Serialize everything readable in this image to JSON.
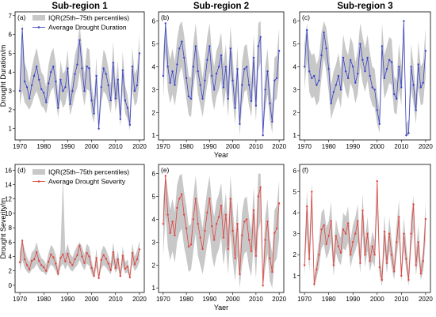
{
  "chart_data": [
    {
      "panel": "(a)",
      "title": "Sub-region 1",
      "type": "line",
      "color": "#3a43c8",
      "xlim": [
        1968,
        2022
      ],
      "ylim": [
        0.4,
        7.2
      ],
      "yticks": [
        1,
        2,
        3,
        4,
        5,
        6,
        7
      ],
      "xticks": [
        1970,
        1980,
        1990,
        2000,
        2010,
        2020
      ],
      "ylabel": "Drought Duration/m",
      "xlabel": "",
      "legend": [
        "IQR(25th–75th percentiles)",
        "Average Drought Duration"
      ],
      "x": [
        1970,
        1971,
        1972,
        1973,
        1974,
        1975,
        1976,
        1977,
        1978,
        1979,
        1980,
        1981,
        1982,
        1983,
        1984,
        1985,
        1986,
        1987,
        1988,
        1989,
        1990,
        1991,
        1992,
        1993,
        1994,
        1995,
        1996,
        1997,
        1998,
        1999,
        2000,
        2001,
        2002,
        2003,
        2004,
        2005,
        2006,
        2007,
        2008,
        2009,
        2010,
        2011,
        2012,
        2013,
        2014,
        2015,
        2016,
        2017,
        2018,
        2019,
        2020
      ],
      "values": [
        3.0,
        6.3,
        3.5,
        3.2,
        2.6,
        3.3,
        3.8,
        4.3,
        3.6,
        3.1,
        2.9,
        2.4,
        3.4,
        4.0,
        4.3,
        3.5,
        2.1,
        3.6,
        3.0,
        3.2,
        4.2,
        2.3,
        3.0,
        3.9,
        4.4,
        5.7,
        4.2,
        3.0,
        4.3,
        4.2,
        2.5,
        1.8,
        3.8,
        1.0,
        3.2,
        4.2,
        3.9,
        3.3,
        2.5,
        4.5,
        2.6,
        3.6,
        1.5,
        4.1,
        2.5,
        2.1,
        1.2,
        4.3,
        3.0,
        3.3,
        5.0
      ],
      "iqr_low": [
        2.2,
        3.0,
        2.4,
        2.2,
        2.0,
        2.3,
        2.7,
        3.0,
        2.6,
        2.2,
        2.1,
        1.8,
        2.5,
        3.0,
        3.2,
        2.5,
        1.6,
        2.6,
        2.1,
        2.3,
        3.0,
        1.7,
        2.2,
        2.8,
        3.2,
        4.0,
        3.0,
        2.2,
        3.1,
        3.0,
        1.8,
        1.3,
        2.8,
        0.8,
        2.3,
        3.0,
        2.8,
        2.4,
        1.8,
        3.2,
        1.9,
        2.6,
        1.1,
        3.0,
        1.8,
        1.5,
        0.9,
        3.1,
        2.2,
        2.4,
        3.6
      ],
      "iqr_high": [
        3.8,
        6.6,
        4.5,
        4.1,
        3.4,
        4.2,
        4.8,
        5.3,
        4.6,
        4.0,
        3.8,
        3.2,
        4.4,
        5.0,
        5.3,
        4.5,
        2.8,
        4.6,
        3.9,
        4.1,
        5.2,
        3.0,
        3.9,
        4.9,
        5.4,
        6.5,
        5.2,
        3.9,
        5.3,
        5.2,
        3.3,
        2.5,
        4.8,
        1.4,
        4.1,
        5.2,
        4.9,
        4.2,
        3.3,
        5.6,
        3.4,
        4.6,
        2.1,
        5.1,
        3.3,
        2.8,
        1.7,
        5.3,
        3.9,
        4.2,
        6.0
      ]
    },
    {
      "panel": "(b)",
      "title": "Sub-region 2",
      "type": "line",
      "color": "#3a43c8",
      "xlim": [
        1968,
        2022
      ],
      "ylim": [
        0.8,
        6.4
      ],
      "yticks": [
        1,
        2,
        3,
        4,
        5,
        6
      ],
      "xticks": [
        1970,
        1980,
        1990,
        2000,
        2010,
        2020
      ],
      "ylabel": "",
      "xlabel": "Year",
      "legend": [],
      "x": [
        1970,
        1971,
        1972,
        1973,
        1974,
        1975,
        1976,
        1977,
        1978,
        1979,
        1980,
        1981,
        1982,
        1983,
        1984,
        1985,
        1986,
        1987,
        1988,
        1989,
        1990,
        1991,
        1992,
        1993,
        1994,
        1995,
        1996,
        1997,
        1998,
        1999,
        2000,
        2001,
        2002,
        2003,
        2004,
        2005,
        2006,
        2007,
        2008,
        2009,
        2010,
        2011,
        2012,
        2013,
        2014,
        2015,
        2016,
        2017,
        2018,
        2019,
        2020
      ],
      "values": [
        3.6,
        5.9,
        4.0,
        3.3,
        3.8,
        3.2,
        4.1,
        4.8,
        5.1,
        4.4,
        3.5,
        2.7,
        2.6,
        4.0,
        4.9,
        3.8,
        3.2,
        2.6,
        3.4,
        4.3,
        4.9,
        3.6,
        3.0,
        3.7,
        4.0,
        4.5,
        3.1,
        4.0,
        2.6,
        4.8,
        3.4,
        2.2,
        3.9,
        1.5,
        3.2,
        3.9,
        4.0,
        3.2,
        2.5,
        4.4,
        2.3,
        4.9,
        5.3,
        1.0,
        3.0,
        3.8,
        2.4,
        1.6,
        3.4,
        3.5,
        4.7
      ],
      "iqr_low": [
        2.6,
        4.6,
        3.0,
        2.4,
        2.8,
        2.3,
        3.0,
        3.7,
        4.0,
        3.3,
        2.6,
        1.9,
        1.8,
        3.0,
        3.8,
        2.8,
        2.3,
        1.8,
        2.5,
        3.2,
        3.8,
        2.6,
        2.1,
        2.7,
        3.0,
        3.4,
        2.2,
        3.0,
        1.8,
        3.7,
        2.5,
        1.5,
        2.9,
        1.0,
        2.3,
        2.9,
        3.0,
        2.3,
        1.8,
        3.3,
        1.6,
        3.8,
        4.2,
        1.0,
        2.1,
        2.8,
        1.7,
        1.1,
        2.5,
        2.6,
        3.6
      ],
      "iqr_high": [
        4.6,
        6.0,
        5.0,
        4.3,
        4.8,
        4.2,
        5.2,
        5.8,
        6.0,
        5.4,
        4.5,
        3.6,
        3.5,
        5.0,
        5.9,
        4.8,
        4.2,
        3.5,
        4.4,
        5.3,
        5.9,
        4.6,
        4.0,
        4.7,
        5.0,
        5.5,
        4.1,
        5.0,
        3.5,
        5.8,
        4.4,
        3.0,
        4.9,
        2.2,
        4.2,
        4.9,
        5.0,
        4.2,
        3.3,
        5.4,
        3.1,
        5.9,
        6.0,
        1.6,
        4.0,
        4.8,
        3.2,
        2.3,
        4.4,
        4.5,
        5.7
      ]
    },
    {
      "panel": "(c)",
      "title": "Sub-region 3",
      "type": "line",
      "color": "#3a43c8",
      "xlim": [
        1968,
        2022
      ],
      "ylim": [
        0.8,
        6.4
      ],
      "yticks": [
        1,
        2,
        3,
        4,
        5,
        6
      ],
      "xticks": [
        1970,
        1980,
        1990,
        2000,
        2010,
        2020
      ],
      "ylabel": "",
      "xlabel": "",
      "legend": [],
      "x": [
        1970,
        1971,
        1972,
        1973,
        1974,
        1975,
        1976,
        1977,
        1978,
        1979,
        1980,
        1981,
        1982,
        1983,
        1984,
        1985,
        1986,
        1987,
        1988,
        1989,
        1990,
        1991,
        1992,
        1993,
        1994,
        1995,
        1996,
        1997,
        1998,
        1999,
        2000,
        2001,
        2002,
        2003,
        2004,
        2005,
        2006,
        2007,
        2008,
        2009,
        2010,
        2011,
        2012,
        2013,
        2014,
        2015,
        2016,
        2017,
        2018,
        2019,
        2020
      ],
      "values": [
        4.0,
        5.6,
        3.8,
        3.5,
        3.6,
        3.2,
        3.4,
        4.5,
        5.5,
        4.8,
        3.9,
        2.4,
        2.9,
        3.2,
        3.6,
        3.0,
        4.4,
        3.8,
        3.5,
        4.3,
        4.0,
        3.3,
        3.7,
        5.0,
        4.3,
        3.8,
        4.4,
        3.6,
        3.1,
        3.0,
        2.1,
        1.5,
        4.9,
        3.5,
        3.9,
        4.3,
        4.2,
        2.8,
        2.6,
        4.0,
        3.1,
        6.0,
        1.0,
        1.1,
        4.0,
        3.2,
        2.1,
        4.1,
        3.1,
        3.3,
        4.7
      ],
      "iqr_low": [
        3.0,
        4.3,
        2.9,
        2.6,
        2.7,
        2.3,
        2.5,
        3.5,
        4.4,
        3.8,
        2.9,
        1.7,
        2.1,
        2.4,
        2.7,
        2.2,
        3.4,
        2.9,
        2.6,
        3.3,
        3.0,
        2.4,
        2.8,
        4.0,
        3.3,
        2.9,
        3.4,
        2.7,
        2.3,
        2.2,
        1.5,
        1.1,
        3.8,
        2.6,
        2.9,
        3.3,
        3.2,
        2.0,
        1.9,
        3.0,
        2.3,
        4.8,
        1.0,
        1.0,
        3.0,
        2.4,
        1.5,
        3.1,
        2.3,
        2.4,
        3.6
      ],
      "iqr_high": [
        5.0,
        5.9,
        4.8,
        4.5,
        4.6,
        4.1,
        4.4,
        5.5,
        6.0,
        5.7,
        4.9,
        3.2,
        3.8,
        4.1,
        4.6,
        3.9,
        5.4,
        4.8,
        4.5,
        5.3,
        5.0,
        4.2,
        4.7,
        5.9,
        5.3,
        4.8,
        5.4,
        4.6,
        4.0,
        3.9,
        2.8,
        2.1,
        5.9,
        4.5,
        4.9,
        5.3,
        5.2,
        3.6,
        3.4,
        5.0,
        4.0,
        6.0,
        1.5,
        1.7,
        5.0,
        4.1,
        2.8,
        5.1,
        4.0,
        4.2,
        5.7
      ]
    },
    {
      "panel": "(d)",
      "title": "",
      "type": "line",
      "color": "#e0443f",
      "xlim": [
        1968,
        2022
      ],
      "ylim": [
        -1,
        16.8
      ],
      "yticks": [
        0,
        2,
        4,
        6,
        8,
        10,
        12,
        14,
        16
      ],
      "xticks": [
        1970,
        1980,
        1990,
        2000,
        2010,
        2020
      ],
      "ylabel": "Drought Severity/m",
      "xlabel": "",
      "legend": [
        "IQR(25th–75th percentiles)",
        "Average Drought Severity"
      ],
      "x": [
        1970,
        1971,
        1972,
        1973,
        1974,
        1975,
        1976,
        1977,
        1978,
        1979,
        1980,
        1981,
        1982,
        1983,
        1984,
        1985,
        1986,
        1987,
        1988,
        1989,
        1990,
        1991,
        1992,
        1993,
        1994,
        1995,
        1996,
        1997,
        1998,
        1999,
        2000,
        2001,
        2002,
        2003,
        2004,
        2005,
        2006,
        2007,
        2008,
        2009,
        2010,
        2011,
        2012,
        2013,
        2014,
        2015,
        2016,
        2017,
        2018,
        2019,
        2020
      ],
      "values": [
        3.2,
        6.2,
        3.6,
        2.8,
        2.2,
        3.4,
        3.6,
        4.6,
        3.4,
        2.8,
        2.5,
        2.0,
        3.3,
        4.3,
        3.9,
        3.0,
        1.6,
        3.8,
        4.3,
        3.3,
        4.4,
        3.2,
        2.8,
        3.6,
        4.2,
        5.5,
        4.0,
        3.1,
        4.5,
        4.0,
        2.4,
        1.3,
        3.8,
        1.0,
        3.5,
        4.2,
        3.7,
        3.0,
        2.1,
        4.6,
        2.4,
        3.6,
        1.3,
        4.1,
        2.3,
        2.6,
        1.1,
        4.5,
        2.9,
        3.6,
        5.0
      ],
      "iqr_low": [
        2.0,
        3.5,
        2.4,
        1.9,
        1.6,
        2.2,
        2.4,
        3.0,
        2.3,
        1.9,
        1.8,
        1.4,
        2.2,
        2.9,
        2.6,
        2.0,
        1.2,
        2.5,
        3.0,
        2.2,
        2.9,
        2.2,
        1.9,
        2.4,
        2.8,
        3.5,
        2.7,
        2.1,
        3.0,
        2.7,
        1.6,
        1.0,
        2.5,
        0.8,
        2.3,
        2.8,
        2.5,
        2.0,
        1.5,
        3.0,
        1.7,
        2.4,
        1.0,
        2.7,
        1.6,
        1.8,
        0.9,
        3.0,
        2.0,
        2.4,
        3.3
      ],
      "iqr_high": [
        4.6,
        6.5,
        5.0,
        3.9,
        3.2,
        4.6,
        4.9,
        6.0,
        4.6,
        3.8,
        3.5,
        2.9,
        4.5,
        5.6,
        5.2,
        4.2,
        2.4,
        5.0,
        15.0,
        4.5,
        5.8,
        4.4,
        3.9,
        4.8,
        5.5,
        6.0,
        5.3,
        4.3,
        5.8,
        5.3,
        3.4,
        2.0,
        5.1,
        1.5,
        4.7,
        5.5,
        5.0,
        4.1,
        3.0,
        6.0,
        3.4,
        4.8,
        2.0,
        5.4,
        3.2,
        3.6,
        1.7,
        5.8,
        4.0,
        4.8,
        6.2
      ]
    },
    {
      "panel": "(e)",
      "title": "",
      "type": "line",
      "color": "#e0443f",
      "xlim": [
        1968,
        2022
      ],
      "ylim": [
        0.8,
        6.4
      ],
      "yticks": [
        1,
        2,
        3,
        4,
        5,
        6
      ],
      "xticks": [
        1970,
        1980,
        1990,
        2000,
        2010,
        2020
      ],
      "ylabel": "",
      "xlabel": "Yaer",
      "legend": [],
      "x": [
        1970,
        1971,
        1972,
        1973,
        1974,
        1975,
        1976,
        1977,
        1978,
        1979,
        1980,
        1981,
        1982,
        1983,
        1984,
        1985,
        1986,
        1987,
        1988,
        1989,
        1990,
        1991,
        1992,
        1993,
        1994,
        1995,
        1996,
        1997,
        1998,
        1999,
        2000,
        2001,
        2002,
        2003,
        2004,
        2005,
        2006,
        2007,
        2008,
        2009,
        2010,
        2011,
        2012,
        2013,
        2014,
        2015,
        2016,
        2017,
        2018,
        2019,
        2020
      ],
      "values": [
        3.8,
        5.9,
        4.2,
        3.4,
        3.9,
        3.3,
        4.5,
        4.9,
        5.1,
        4.2,
        3.6,
        2.8,
        2.9,
        4.0,
        4.9,
        3.8,
        3.2,
        2.7,
        3.5,
        4.3,
        4.9,
        3.7,
        3.1,
        3.8,
        4.1,
        4.6,
        3.2,
        4.2,
        2.7,
        4.9,
        3.5,
        2.3,
        3.8,
        1.6,
        3.3,
        3.9,
        4.0,
        3.1,
        2.6,
        4.4,
        2.4,
        5.0,
        5.4,
        1.1,
        3.1,
        3.9,
        2.3,
        1.7,
        3.4,
        3.6,
        4.7
      ],
      "iqr_low": [
        2.4,
        4.2,
        2.8,
        2.2,
        2.6,
        2.1,
        3.0,
        3.4,
        3.6,
        2.8,
        2.3,
        1.7,
        1.8,
        2.6,
        3.4,
        2.4,
        2.0,
        1.6,
        2.2,
        2.9,
        3.4,
        2.4,
        1.9,
        2.4,
        2.7,
        3.2,
        2.0,
        2.8,
        1.6,
        3.4,
        2.2,
        1.3,
        2.4,
        1.0,
        2.0,
        2.5,
        2.6,
        1.9,
        1.5,
        2.9,
        1.4,
        3.5,
        3.9,
        1.0,
        1.9,
        2.5,
        1.3,
        1.0,
        2.1,
        2.3,
        3.2
      ],
      "iqr_high": [
        4.8,
        6.0,
        5.2,
        4.4,
        4.9,
        4.3,
        5.5,
        5.9,
        6.0,
        5.2,
        4.6,
        3.7,
        3.8,
        5.0,
        5.9,
        4.8,
        4.2,
        3.6,
        4.5,
        5.3,
        5.9,
        4.7,
        4.1,
        4.8,
        5.1,
        5.6,
        4.2,
        5.2,
        3.6,
        5.9,
        4.5,
        3.2,
        4.8,
        2.4,
        4.3,
        4.9,
        5.0,
        4.1,
        3.5,
        5.4,
        3.3,
        6.0,
        6.0,
        1.8,
        4.1,
        4.9,
        3.2,
        2.5,
        4.4,
        4.6,
        5.7
      ]
    },
    {
      "panel": "(f)",
      "title": "",
      "type": "line",
      "color": "#e0443f",
      "xlim": [
        1968,
        2022
      ],
      "ylim": [
        0.2,
        6.3
      ],
      "yticks": [
        1,
        2,
        3,
        4,
        5,
        6
      ],
      "xticks": [
        1970,
        1980,
        1990,
        2000,
        2010,
        2020
      ],
      "ylabel": "",
      "xlabel": "",
      "legend": [],
      "x": [
        1970,
        1971,
        1972,
        1973,
        1974,
        1975,
        1976,
        1977,
        1978,
        1979,
        1980,
        1981,
        1982,
        1983,
        1984,
        1985,
        1986,
        1987,
        1988,
        1989,
        1990,
        1991,
        1992,
        1993,
        1994,
        1995,
        1996,
        1997,
        1998,
        1999,
        2000,
        2001,
        2002,
        2003,
        2004,
        2005,
        2006,
        2007,
        2008,
        2009,
        2010,
        2011,
        2012,
        2013,
        2014,
        2015,
        2016,
        2017,
        2018,
        2019,
        2020
      ],
      "values": [
        1.5,
        4.3,
        1.8,
        5.0,
        0.6,
        1.3,
        2.0,
        3.2,
        3.4,
        2.5,
        2.9,
        3.6,
        1.5,
        2.9,
        2.4,
        2.1,
        3.2,
        3.0,
        3.5,
        2.0,
        2.6,
        3.0,
        3.6,
        1.6,
        4.1,
        2.0,
        3.0,
        1.7,
        2.4,
        2.0,
        5.5,
        1.4,
        0.8,
        3.1,
        1.6,
        3.0,
        2.0,
        1.2,
        2.6,
        3.8,
        1.0,
        3.0,
        1.8,
        0.8,
        3.0,
        4.4,
        1.5,
        2.6,
        1.1,
        1.7,
        3.7
      ],
      "iqr_low": [
        1.0,
        3.0,
        1.2,
        3.6,
        0.4,
        0.9,
        1.4,
        2.3,
        2.5,
        1.8,
        2.1,
        2.6,
        1.0,
        2.1,
        1.7,
        1.5,
        2.3,
        2.2,
        2.6,
        1.4,
        1.9,
        2.2,
        2.6,
        1.1,
        3.0,
        1.4,
        2.2,
        1.2,
        1.7,
        1.4,
        4.0,
        1.0,
        0.5,
        2.2,
        1.1,
        2.2,
        1.4,
        0.8,
        1.9,
        2.8,
        0.7,
        2.2,
        1.3,
        0.5,
        2.2,
        3.2,
        1.0,
        1.9,
        0.8,
        1.2,
        2.7
      ],
      "iqr_high": [
        2.1,
        5.1,
        2.5,
        5.5,
        0.9,
        1.8,
        2.7,
        4.0,
        4.2,
        3.3,
        3.6,
        4.5,
        2.1,
        3.7,
        3.1,
        2.8,
        4.0,
        3.8,
        4.3,
        2.7,
        3.4,
        3.8,
        4.4,
        2.2,
        4.9,
        2.7,
        3.8,
        2.3,
        3.1,
        2.7,
        5.8,
        2.0,
        1.2,
        3.9,
        2.2,
        3.8,
        2.7,
        1.7,
        3.4,
        4.6,
        1.4,
        3.8,
        2.5,
        1.2,
        3.8,
        4.8,
        2.1,
        3.4,
        1.5,
        2.3,
        4.5
      ]
    }
  ]
}
